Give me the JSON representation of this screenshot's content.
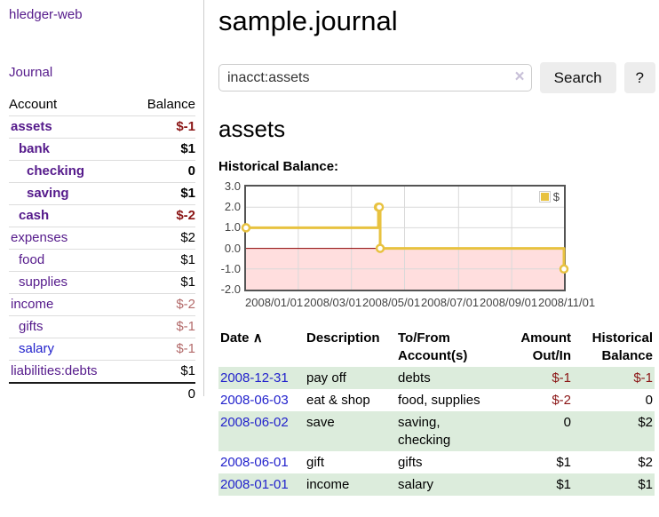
{
  "sidebar": {
    "app_title": "hledger-web",
    "nav": {
      "journal": "Journal"
    },
    "accounts": {
      "headers": {
        "account": "Account",
        "balance": "Balance"
      },
      "rows": [
        {
          "account": "assets",
          "balance": "$-1",
          "depth": 1,
          "matched": true,
          "negative": "strong"
        },
        {
          "account": "bank",
          "balance": "$1",
          "depth": 2,
          "matched": true,
          "negative": null
        },
        {
          "account": "checking",
          "balance": "0",
          "depth": 3,
          "matched": true,
          "negative": null
        },
        {
          "account": "saving",
          "balance": "$1",
          "depth": 3,
          "matched": true,
          "negative": null
        },
        {
          "account": "cash",
          "balance": "$-2",
          "depth": 2,
          "matched": true,
          "negative": "strong"
        },
        {
          "account": "expenses",
          "balance": "$2",
          "depth": 1,
          "matched": false,
          "negative": null
        },
        {
          "account": "food",
          "balance": "$1",
          "depth": 2,
          "matched": false,
          "negative": null
        },
        {
          "account": "supplies",
          "balance": "$1",
          "depth": 2,
          "matched": false,
          "negative": null
        },
        {
          "account": "income",
          "balance": "$-2",
          "depth": 1,
          "matched": false,
          "negative": "dim"
        },
        {
          "account": "gifts",
          "balance": "$-1",
          "depth": 2,
          "matched": false,
          "negative": "dim"
        },
        {
          "account": "salary",
          "balance": "$-1",
          "depth": 2,
          "matched": false,
          "negative": "dim",
          "unvisited": true
        },
        {
          "account": "liabilities:debts",
          "balance": "$1",
          "depth": 1,
          "matched": false,
          "negative": null
        }
      ],
      "total": "0"
    }
  },
  "header": {
    "title": "sample.journal"
  },
  "search": {
    "value": "inacct:assets",
    "clear_icon": "×",
    "button": "Search",
    "help": "?"
  },
  "account_page": {
    "heading": "assets",
    "chart_label": "Historical Balance:"
  },
  "chart_data": {
    "type": "line",
    "style": "step",
    "title": "Historical Balance",
    "series": [
      {
        "name": "$",
        "color": "#e8c240",
        "points": [
          [
            "2008-01-01",
            1.0
          ],
          [
            "2008-06-01",
            2.0
          ],
          [
            "2008-06-02",
            2.0
          ],
          [
            "2008-06-03",
            0.0
          ],
          [
            "2008-12-31",
            -1.0
          ]
        ]
      }
    ],
    "x_range": [
      "2008-01-01",
      "2008-12-31"
    ],
    "ylim": [
      -2.0,
      3.0
    ],
    "y_ticks": [
      3.0,
      2.0,
      1.0,
      0.0,
      -1.0,
      -2.0
    ],
    "x_ticks": [
      "2008/01/01",
      "2008/03/01",
      "2008/05/01",
      "2008/07/01",
      "2008/09/01",
      "2008/11/01"
    ],
    "legend": {
      "label": "$",
      "position": "top-right"
    },
    "grid": true,
    "negative_region": true,
    "colors": {
      "line": "#e8c240",
      "marker_fill": "#ffffff",
      "negative_fill": "#ffdede",
      "zero_line": "#8b0000",
      "grid": "#d9d9d9",
      "border": "#545454"
    }
  },
  "register": {
    "headers": {
      "date": "Date",
      "sort_icon": "∧",
      "description": "Description",
      "accounts": "To/From Account(s)",
      "amount": "Amount Out/In",
      "balance": "Historical Balance"
    },
    "rows": [
      {
        "date": "2008-12-31",
        "description": "pay off",
        "accounts": "debts",
        "amount": "$-1",
        "balance": "$-1",
        "amount_negative": true,
        "balance_negative": true
      },
      {
        "date": "2008-06-03",
        "description": "eat & shop",
        "accounts": "food, supplies",
        "amount": "$-2",
        "balance": "0",
        "amount_negative": true,
        "balance_negative": false
      },
      {
        "date": "2008-06-02",
        "description": "save",
        "accounts": "saving, checking",
        "amount": "0",
        "balance": "$2",
        "amount_negative": false,
        "balance_negative": false
      },
      {
        "date": "2008-06-01",
        "description": "gift",
        "accounts": "gifts",
        "amount": "$1",
        "balance": "$2",
        "amount_negative": false,
        "balance_negative": false
      },
      {
        "date": "2008-01-01",
        "description": "income",
        "accounts": "salary",
        "amount": "$1",
        "balance": "$1",
        "amount_negative": false,
        "balance_negative": false
      }
    ]
  },
  "colors": {
    "link_visited": "#551a8b",
    "link": "#2222cc",
    "negative_strong": "#8b1616",
    "negative_dim": "#b36a6a",
    "row_stripe": "#dcecdc"
  }
}
